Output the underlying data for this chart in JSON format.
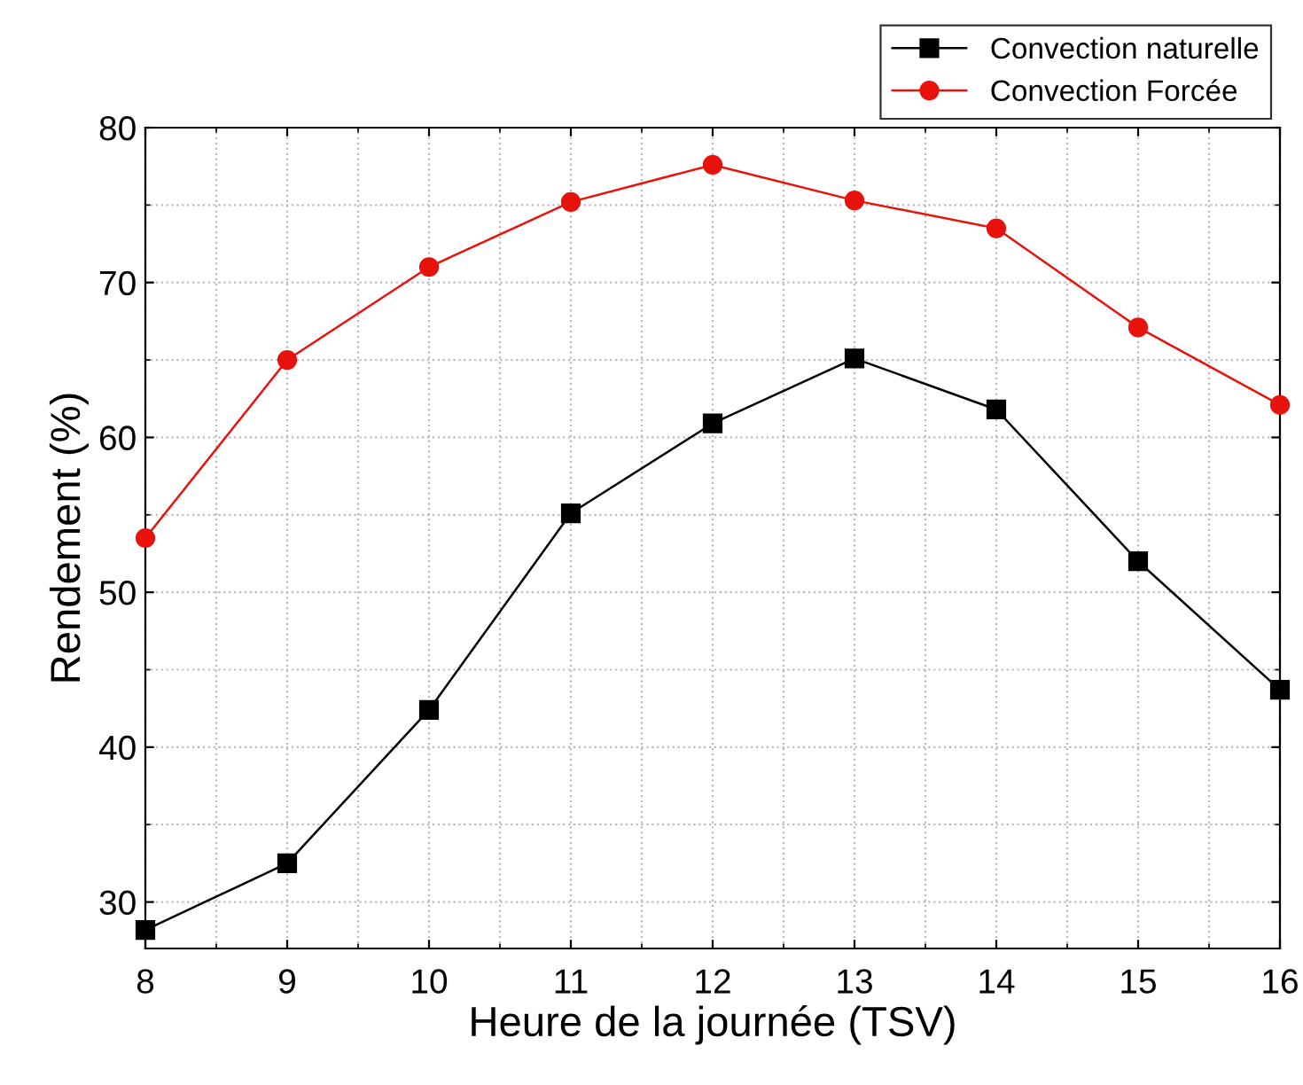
{
  "chart_data": {
    "type": "line",
    "xlabel": "Heure de la journée (TSV)",
    "ylabel": "Rendement (%)",
    "x": [
      8,
      9,
      10,
      11,
      12,
      13,
      14,
      15,
      16
    ],
    "series": [
      {
        "name": "Convection naturelle",
        "color": "#000000",
        "marker": "square",
        "values": [
          28.2,
          32.5,
          42.4,
          55.1,
          60.9,
          65.1,
          61.8,
          52.0,
          43.7
        ]
      },
      {
        "name": "Convection Forcée",
        "color": "#e8120c",
        "marker": "circle",
        "values": [
          53.5,
          65.0,
          71.0,
          75.2,
          77.6,
          75.3,
          73.5,
          67.1,
          62.1
        ]
      }
    ],
    "xlim": [
      8,
      16
    ],
    "xticks": [
      8,
      9,
      10,
      11,
      12,
      13,
      14,
      15,
      16
    ],
    "ylim": [
      27,
      80
    ],
    "yticks": [
      30,
      40,
      50,
      60,
      70,
      80
    ],
    "grid": true,
    "legend": "top right",
    "line_style": "solid"
  }
}
